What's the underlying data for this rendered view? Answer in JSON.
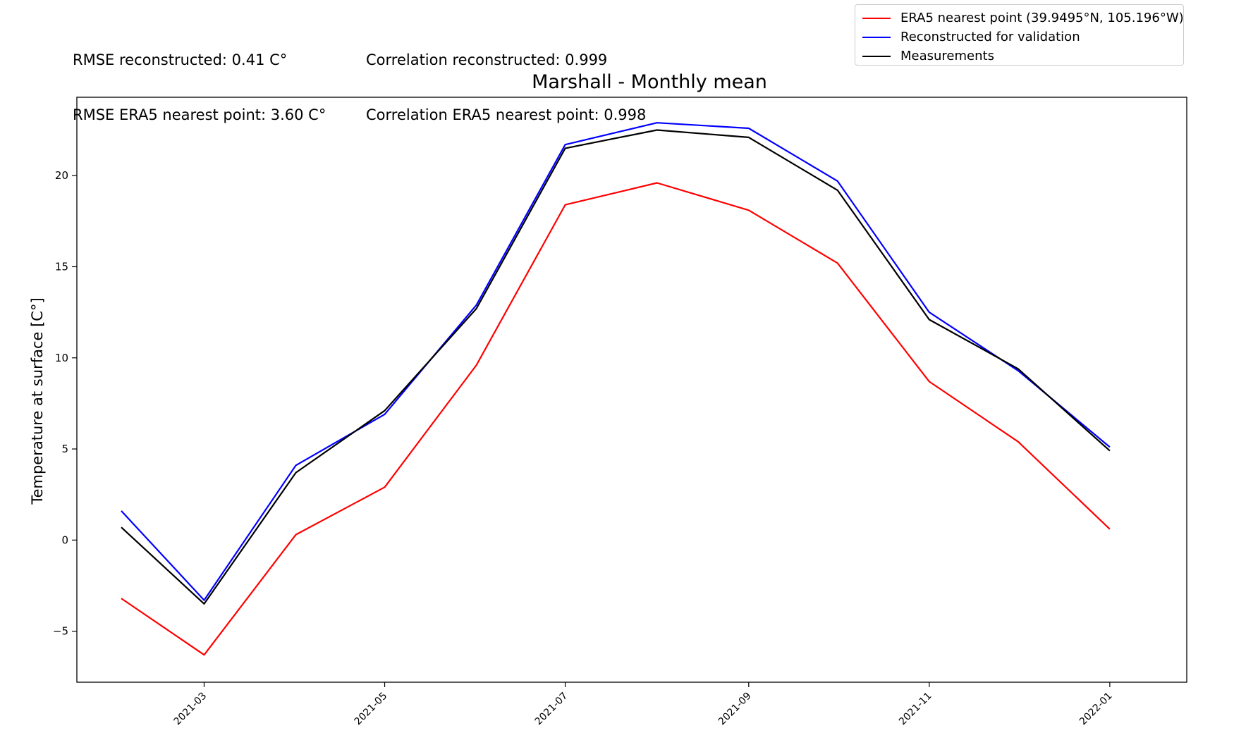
{
  "stats": {
    "rmse_reconstructed": "RMSE reconstructed: 0.41 C°",
    "rmse_era5": "RMSE ERA5 nearest point: 3.60 C°",
    "corr_reconstructed": "Correlation reconstructed: 0.999",
    "corr_era5": "Correlation ERA5 nearest point: 0.998"
  },
  "chart_data": {
    "type": "line",
    "title": "Marshall - Monthly mean",
    "xlabel": "",
    "ylabel": "Temperature at surface [C°]",
    "x": [
      "2021-02-01",
      "2021-03-01",
      "2021-04-01",
      "2021-05-01",
      "2021-06-01",
      "2021-07-01",
      "2021-08-01",
      "2021-09-01",
      "2021-10-01",
      "2021-11-01",
      "2021-12-01",
      "2022-01-01"
    ],
    "xticks": [
      "2021-03",
      "2021-05",
      "2021-07",
      "2021-09",
      "2021-11",
      "2022-01"
    ],
    "xlim": [
      "2021-01-17",
      "2022-01-27"
    ],
    "ylim": [
      -7.8,
      24.3
    ],
    "yticks": [
      -5,
      0,
      5,
      10,
      15,
      20
    ],
    "ytick_labels": [
      "−5",
      "0",
      "5",
      "10",
      "15",
      "20"
    ],
    "legend_position": "top-right",
    "grid": false,
    "series": [
      {
        "name": "ERA5 nearest point (39.9495°N, 105.196°W)",
        "color": "#ff0000",
        "values": [
          -3.2,
          -6.3,
          0.3,
          2.9,
          9.6,
          18.4,
          19.6,
          18.1,
          15.2,
          8.7,
          5.4,
          0.6
        ]
      },
      {
        "name": "Reconstructed for validation",
        "color": "#0000ff",
        "values": [
          1.6,
          -3.3,
          4.1,
          6.9,
          12.9,
          21.7,
          22.9,
          22.6,
          19.7,
          12.5,
          9.3,
          5.1
        ]
      },
      {
        "name": "Measurements",
        "color": "#000000",
        "values": [
          0.7,
          -3.5,
          3.7,
          7.1,
          12.7,
          21.5,
          22.5,
          22.1,
          19.2,
          12.1,
          9.4,
          4.9
        ]
      }
    ]
  }
}
